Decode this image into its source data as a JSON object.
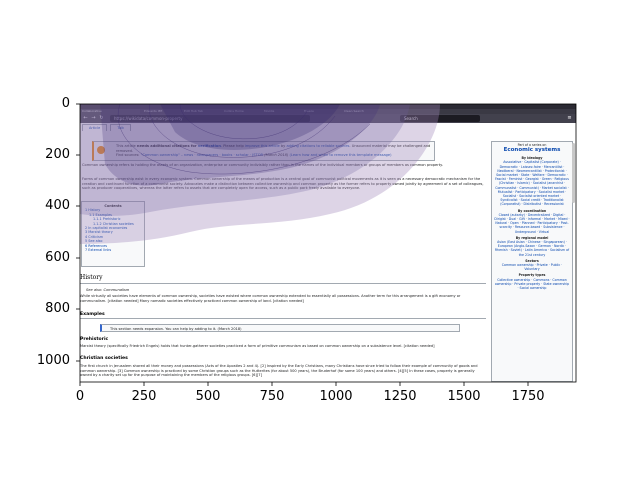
{
  "figure": {
    "x_ticks": [
      "0",
      "250",
      "500",
      "750",
      "1000",
      "1250",
      "1500",
      "1750"
    ],
    "y_ticks": [
      "0",
      "200",
      "400",
      "600",
      "800",
      "1000"
    ]
  },
  "browser": {
    "tabs": [
      "Collaborative",
      "Edwards IEE",
      "Edit Hub Tab",
      "Collins Home",
      "Mozilla",
      "Freeze",
      "Clean Search"
    ],
    "url": "https://wikidata/common-property",
    "search_placeholder": "Search"
  },
  "page": {
    "tabs": [
      "Article",
      "Talk"
    ],
    "notice": {
      "line1_a": "This article ",
      "line1_b": "needs additional citations for ",
      "line1_c": "verification",
      "line1_d": ". Please help ",
      "line1_e": "improve this article",
      "line1_f": " by ",
      "line1_g": "adding citations to reliable sources",
      "line1_h": ". Unsourced material may be challenged and removed.",
      "line2_a": "Find sources: ",
      "line2_b": "\"Common ownership\"",
      "line2_c": " – news · newspapers · books · scholar · JSTOR",
      "line2_d": " (March 2018) ",
      "line2_e": "(Learn how and when to remove this template message)"
    },
    "intro1": "Common ownership refers to holding the assets of an organization, enterprise or community indivisibly rather than in the names of the individual members or groups of members as common property.",
    "intro2": "Forms of common ownership exist in every economic system. Common ownership of the means of production is a central goal of communist political movements as it is seen as a necessary democratic mechanism for the creation and continued function of a communist society. Advocates make a distinction between collective ownership and common property as the former refers to property owned jointly by agreement of a set of colleagues, such as producer cooperatives, whereas the latter refers to assets that are completely open for access, such as a public park freely available to everyone.",
    "toc": {
      "title": "Contents",
      "items": [
        "1 History",
        "1.1 Examples",
        "1.1.1 Prehistoric",
        "1.1.2 Christian societies",
        "2 In capitalist economies",
        "3 Marxist theory",
        "4 Criticism",
        "5 See also",
        "6 References",
        "7 External links"
      ]
    },
    "history": {
      "heading": "History",
      "see_also": "See also: Communalism",
      "text": "While virtually all societies have elements of common ownership, societies have existed where common ownership extended to essentially all possessions. Another term for this arrangement is a gift economy or communalism. [citation needed] Many nomadic societies effectively practiced common ownership of land. [citation needed]"
    },
    "examples": {
      "heading": "Examples",
      "expand": "This section needs expansion. You can help by adding to it. (March 2018)"
    },
    "prehistoric": {
      "heading": "Prehistoric",
      "text": "Marxist theory (specifically Friedrich Engels) holds that hunter-gatherer societies practiced a form of primitive communism as based on common ownership on a subsistence level. [citation needed]"
    },
    "christian": {
      "heading": "Christian societies",
      "text": "The first church in Jerusalem shared all their money and possessions (Acts of the Apostles 2 and 4). [2] Inspired by the Early Christians, many Christians have since tried to follow their example of community of goods and common ownership. [3] Common ownership is practiced by some Christian groups such as the Hutterites (for about 500 years), the Bruderhof (for some 100 years) and others. [4][5] In these cases, property is generally owned by a charity set up for the purpose of maintaining the members of the religious groups. [6][7]"
    },
    "sidebox": {
      "part_of": "Part of a series on",
      "title": "Economic systems",
      "sections": [
        {
          "head": "By ideology",
          "items": "Associative · Capitalist (Corporate) · Democratic · Laissez-faire · Mercantilist · Neoliberal · Neomercantilist · Protectionist · Social market · State · Welfare · Democratic · Fascist · Feminist · Georgist · Green · Religious (Christian · Islamic) · Socialist (anarchist · Communalist · Communist) · Market socialist · Mutualist · Participatory · Socialist market · Socialist · Socialist oriented market · Syndicalist · Social credit · Traditionalist (Corporatist) · Distributist · Recessionist"
        },
        {
          "head": "By coordination",
          "items": "Closed (autarky) · Decentralized · Digital · Dirigist · Dual · Gift · Informal · Market · Mixed · Natural · Open · Planned · Participatory · Post-scarcity · Resource-based · Subsistence · Underground · Virtual"
        },
        {
          "head": "By regional model",
          "items": "Asian (East Asian · Chinese · Singaporean) · European (Anglo-Saxon · German · Nordic · Rhenish · Soviet) · Latin America · Socialism of the 21st century"
        },
        {
          "head": "Sectors",
          "items": "Common ownership · Private · Public · Voluntary"
        },
        {
          "head": "Property types",
          "items": "Collective ownership · Commons · Common ownership · Private property · State ownership · Social ownership"
        }
      ]
    }
  }
}
